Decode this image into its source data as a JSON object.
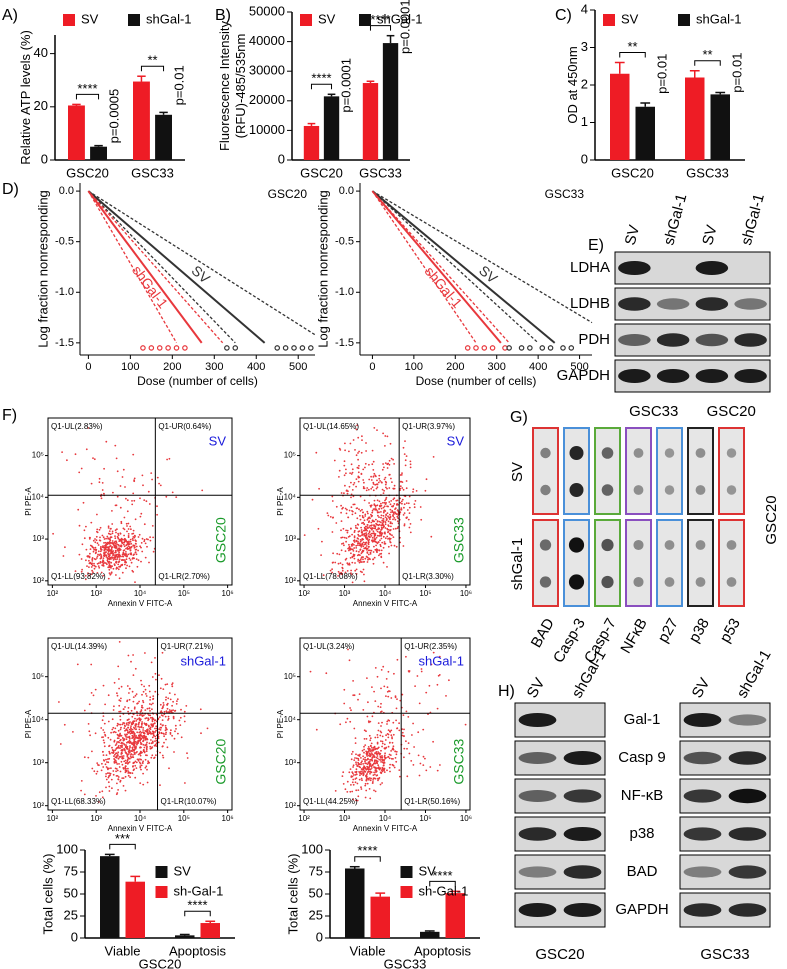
{
  "chart_data": [
    {
      "type": "bar",
      "label": "A)",
      "ylabel": "Relative ATP levels (%)",
      "categories": [
        "GSC20",
        "GSC33"
      ],
      "series": [
        {
          "name": "SV",
          "color": "#ee1c25",
          "values": [
            20.5,
            29.5
          ],
          "errors": [
            0.4,
            2.0
          ]
        },
        {
          "name": "shGal-1",
          "color": "#111111",
          "values": [
            5,
            17
          ],
          "errors": [
            0.4,
            0.9
          ]
        }
      ],
      "ylim": [
        0,
        47
      ],
      "yticks": [
        0,
        20,
        40
      ],
      "legend": "top",
      "comparisons": [
        {
          "stars": "****",
          "p": "p=0.0005"
        },
        {
          "stars": "**",
          "p": "p=0.01"
        }
      ]
    },
    {
      "type": "bar",
      "label": "B)",
      "ylabel": [
        "Fluorescence Intensity",
        "(RFU)-485/535nm"
      ],
      "categories": [
        "GSC20",
        "GSC33"
      ],
      "series": [
        {
          "name": "SV",
          "color": "#ee1c25",
          "values": [
            11500,
            26000
          ],
          "errors": [
            800,
            600
          ]
        },
        {
          "name": "shGal-1",
          "color": "#111111",
          "values": [
            21500,
            39500
          ],
          "errors": [
            700,
            2500
          ]
        }
      ],
      "ylim": [
        0,
        50000
      ],
      "yticks": [
        0,
        10000,
        20000,
        30000,
        40000,
        50000
      ],
      "legend": "top",
      "comparisons": [
        {
          "stars": "****",
          "p": "p=0.0001"
        },
        {
          "stars": "****",
          "p": "p=0.0001"
        }
      ]
    },
    {
      "type": "bar",
      "label": "C)",
      "ylabel": "OD at 450nm",
      "categories": [
        "GSC20",
        "GSC33"
      ],
      "series": [
        {
          "name": "SV",
          "color": "#ee1c25",
          "values": [
            2.3,
            2.2
          ],
          "errors": [
            0.3,
            0.18
          ]
        },
        {
          "name": "shGal-1",
          "color": "#111111",
          "values": [
            1.42,
            1.75
          ],
          "errors": [
            0.1,
            0.05
          ]
        }
      ],
      "ylim": [
        0,
        4
      ],
      "yticks": [
        0,
        1,
        2,
        3,
        4
      ],
      "legend": "top",
      "comparisons": [
        {
          "stars": "**",
          "p": "p=0.01"
        },
        {
          "stars": "**",
          "p": "p=0.01"
        }
      ]
    },
    {
      "type": "line",
      "label": "D)",
      "title": "GSC20",
      "xlabel": "Dose (number of cells)",
      "ylabel": "Log fraction nonresponding",
      "xlim": [
        -20,
        540
      ],
      "xticks": [
        0,
        100,
        200,
        300,
        400,
        500
      ],
      "ylim": [
        -1.62,
        0.08
      ],
      "yticks": [
        {
          "value": 0,
          "label": "0.0"
        },
        -0.5,
        {
          "value": -1,
          "label": "-1.0"
        },
        -1.5
      ],
      "series": [
        {
          "name": "SV",
          "color": "#333333",
          "x": [
            0,
            420
          ],
          "values": [
            0,
            -1.5
          ]
        },
        {
          "name": "shGal-1",
          "color": "#e8383d",
          "x": [
            0,
            270
          ],
          "values": [
            0,
            -1.5
          ]
        },
        {
          "color": "#333333",
          "dash": true,
          "x": [
            0,
            350
          ],
          "values": [
            0,
            -1.5
          ]
        },
        {
          "color": "#333333",
          "dash": true,
          "x": [
            0,
            540
          ],
          "values": [
            0,
            -1.42
          ]
        },
        {
          "color": "#e8383d",
          "dash": true,
          "x": [
            0,
            210
          ],
          "values": [
            0,
            -1.5
          ]
        },
        {
          "color": "#e8383d",
          "dash": true,
          "x": [
            0,
            320
          ],
          "values": [
            0,
            -1.5
          ]
        },
        {
          "color": "#e8383d",
          "marker": "circle",
          "x": [
            130,
            150,
            170,
            190,
            210,
            230
          ],
          "values": [
            -1.55,
            -1.55,
            -1.55,
            -1.55,
            -1.55,
            -1.55
          ]
        },
        {
          "color": "#333333",
          "marker": "circle",
          "x": [
            330,
            350,
            450,
            470,
            490,
            510,
            530
          ],
          "values": [
            -1.55,
            -1.55,
            -1.55,
            -1.55,
            -1.55,
            -1.55,
            -1.55
          ]
        }
      ]
    },
    {
      "type": "line",
      "title": "GSC33",
      "xlabel": "Dose (number of cells)",
      "ylabel": "Log fraction nonresponding",
      "xlim": [
        -30,
        530
      ],
      "xticks": [
        0,
        100,
        200,
        300,
        400,
        500
      ],
      "ylim": [
        -1.62,
        0.08
      ],
      "yticks": [
        {
          "value": 0,
          "label": "0.0"
        },
        -0.5,
        {
          "value": -1,
          "label": "-1.0"
        },
        -1.5
      ],
      "series": [
        {
          "name": "SV",
          "color": "#333333",
          "x": [
            0,
            440
          ],
          "values": [
            0,
            -1.5
          ]
        },
        {
          "name": "shGal-1",
          "color": "#e8383d",
          "x": [
            0,
            310
          ],
          "values": [
            0,
            -1.5
          ]
        },
        {
          "color": "#333333",
          "dash": true,
          "x": [
            0,
            400
          ],
          "values": [
            0,
            -1.5
          ]
        },
        {
          "color": "#333333",
          "dash": true,
          "x": [
            0,
            530
          ],
          "values": [
            0,
            -1.3
          ]
        },
        {
          "color": "#e8383d",
          "dash": true,
          "x": [
            0,
            250
          ],
          "values": [
            0,
            -1.5
          ]
        },
        {
          "color": "#e8383d",
          "dash": true,
          "x": [
            0,
            330
          ],
          "values": [
            0,
            -1.5
          ]
        },
        {
          "color": "#e8383d",
          "marker": "circle",
          "x": [
            230,
            250,
            270,
            290,
            320
          ],
          "values": [
            -1.55,
            -1.55,
            -1.55,
            -1.55,
            -1.55
          ]
        },
        {
          "color": "#333333",
          "marker": "circle",
          "x": [
            330,
            360,
            380,
            410,
            430,
            460,
            480
          ],
          "values": [
            -1.55,
            -1.55,
            -1.55,
            -1.55,
            -1.55,
            -1.55,
            -1.55
          ]
        }
      ]
    },
    {
      "type": "flow",
      "label": "F)",
      "xlabel": "Annexin V FITC-A",
      "ylabel": "PI PE-A",
      "xlim": [
        1.9,
        6.1
      ],
      "ylim": [
        1.9,
        5.9
      ],
      "xticks": [
        {
          "value": 2,
          "label": "10²"
        },
        {
          "value": 3,
          "label": "10³"
        },
        {
          "value": 4,
          "label": "10⁴"
        },
        {
          "value": 5,
          "label": "10⁵"
        },
        {
          "value": 6,
          "label": "10⁶"
        }
      ],
      "yticks": [
        {
          "value": 2,
          "label": "10²"
        },
        {
          "value": 3,
          "label": "10³"
        },
        {
          "value": 4,
          "label": "10⁴"
        },
        {
          "value": 5,
          "label": "10⁵"
        }
      ],
      "quadrants": [
        "Q1-UL(2.83%)",
        "Q1-UR(0.64%)",
        "Q1-LL(93.82%)",
        "Q1-LR(2.70%)"
      ],
      "group": "SV",
      "group_color": "#1a1adb",
      "cell": "GSC20",
      "cell_color": "#1a9a2a",
      "dot_color": "#e8383d"
    },
    {
      "type": "flow",
      "xlabel": "Annexin V FITC-A",
      "ylabel": "PI PE-A",
      "xlim": [
        1.9,
        6.1
      ],
      "ylim": [
        1.9,
        5.9
      ],
      "xticks": [
        {
          "value": 2,
          "label": "10²"
        },
        {
          "value": 3,
          "label": "10³"
        },
        {
          "value": 4,
          "label": "10⁴"
        },
        {
          "value": 5,
          "label": "10⁵"
        },
        {
          "value": 6,
          "label": "10⁶"
        }
      ],
      "yticks": [
        {
          "value": 2,
          "label": "10²"
        },
        {
          "value": 3,
          "label": "10³"
        },
        {
          "value": 4,
          "label": "10⁴"
        },
        {
          "value": 5,
          "label": "10⁵"
        }
      ],
      "quadrants": [
        "Q1-UL(14.65%)",
        "Q1-UR(3.97%)",
        "Q1-LL(78.08%)",
        "Q1-LR(3.30%)"
      ],
      "group": "SV",
      "group_color": "#1a1adb",
      "cell": "GSC33",
      "cell_color": "#1a9a2a",
      "dot_color": "#e8383d"
    },
    {
      "type": "flow",
      "xlabel": "Annexin V FITC-A",
      "ylabel": "PI PE-A",
      "xlim": [
        1.9,
        6.1
      ],
      "ylim": [
        1.9,
        5.9
      ],
      "xticks": [
        {
          "value": 2,
          "label": "10²"
        },
        {
          "value": 3,
          "label": "10³"
        },
        {
          "value": 4,
          "label": "10⁴"
        },
        {
          "value": 5,
          "label": "10⁵"
        },
        {
          "value": 6,
          "label": "10⁶"
        }
      ],
      "yticks": [
        {
          "value": 2,
          "label": "10²"
        },
        {
          "value": 3,
          "label": "10³"
        },
        {
          "value": 4,
          "label": "10⁴"
        },
        {
          "value": 5,
          "label": "10⁵"
        }
      ],
      "quadrants": [
        "Q1-UL(14.39%)",
        "Q1-UR(7.21%)",
        "Q1-LL(68.33%)",
        "Q1-LR(10.07%)"
      ],
      "group": "shGal-1",
      "group_color": "#1a1adb",
      "cell": "GSC20",
      "cell_color": "#1a9a2a",
      "dot_color": "#e8383d"
    },
    {
      "type": "flow",
      "xlabel": "Annexin V FITC-A",
      "ylabel": "PI PE-A",
      "xlim": [
        1.9,
        6.1
      ],
      "ylim": [
        1.9,
        5.9
      ],
      "xticks": [
        {
          "value": 2,
          "label": "10²"
        },
        {
          "value": 3,
          "label": "10³"
        },
        {
          "value": 4,
          "label": "10⁴"
        },
        {
          "value": 5,
          "label": "10⁵"
        },
        {
          "value": 6,
          "label": "10⁶"
        }
      ],
      "yticks": [
        {
          "value": 2,
          "label": "10²"
        },
        {
          "value": 3,
          "label": "10³"
        },
        {
          "value": 4,
          "label": "10⁴"
        },
        {
          "value": 5,
          "label": "10⁵"
        }
      ],
      "quadrants": [
        "Q1-UL(3.24%)",
        "Q1-UR(2.35%)",
        "Q1-LL(44.25%)",
        "Q1-LR(50.16%)"
      ],
      "group": "shGal-1",
      "group_color": "#1a1adb",
      "cell": "GSC33",
      "cell_color": "#1a9a2a",
      "dot_color": "#e8383d"
    },
    {
      "type": "bar",
      "ylabel": "Total cells (%)",
      "xlabel": "GSC20",
      "categories": [
        "Viable",
        "Apoptosis"
      ],
      "series": [
        {
          "name": "SV",
          "color": "#111111",
          "values": [
            93,
            3
          ],
          "errors": [
            2,
            1
          ]
        },
        {
          "name": "sh-Gal-1",
          "color": "#ee1c25",
          "values": [
            64,
            17
          ],
          "errors": [
            6,
            2
          ]
        }
      ],
      "ylim": [
        0,
        100
      ],
      "yticks": [
        0,
        25,
        50,
        75,
        100
      ],
      "legend": "right",
      "comparisons": [
        {
          "stars": "***"
        },
        {
          "stars": "****"
        }
      ]
    },
    {
      "type": "bar",
      "ylabel": "Total cells (%)",
      "xlabel": "GSC33",
      "categories": [
        "Viable",
        "Apoptosis"
      ],
      "series": [
        {
          "name": "SV",
          "color": "#111111",
          "values": [
            79,
            7
          ],
          "errors": [
            2,
            1
          ]
        },
        {
          "name": "sh-Gal-1",
          "color": "#ee1c25",
          "values": [
            47,
            51
          ],
          "errors": [
            4,
            2
          ]
        }
      ],
      "ylim": [
        0,
        100
      ],
      "yticks": [
        0,
        25,
        50,
        75,
        100
      ],
      "legend": "right",
      "comparisons": [
        {
          "stars": "****"
        },
        {
          "stars": "****"
        }
      ]
    }
  ],
  "blot_E": {
    "label": "E)",
    "lanes": [
      "SV",
      "shGal-1",
      "SV",
      "shGal-1"
    ],
    "rows": [
      "LDHA",
      "LDHB",
      "PDH",
      "GAPDH"
    ],
    "groups": [
      "GSC33",
      "GSC20"
    ]
  },
  "dot_blot_G": {
    "label": "G)",
    "rows": [
      "SV",
      "shGal-1"
    ],
    "columns": [
      "BAD",
      "Casp-3",
      "Casp-7",
      "NFκB",
      "p27",
      "p38",
      "p53"
    ],
    "side": "GSC20"
  },
  "blot_H": {
    "label": "H)",
    "lanes": [
      "SV",
      "shGal-1"
    ],
    "rows": [
      "Gal-1",
      "Casp 9",
      "NF-κB",
      "p38",
      "BAD",
      "GAPDH"
    ],
    "groups": [
      "GSC20",
      "GSC33"
    ]
  }
}
